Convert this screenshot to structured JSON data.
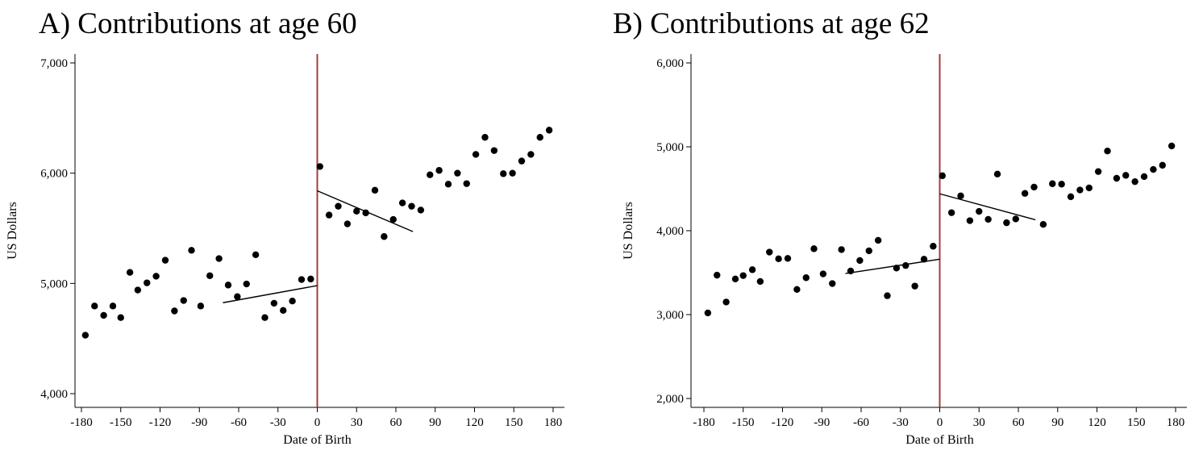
{
  "panels": [
    {
      "title": "A) Contributions at age 60"
    },
    {
      "title": "B) Contributions at age 62"
    }
  ],
  "colors": {
    "cutoff_line": "#a03c3c",
    "points": "#000000",
    "fit_line": "#000000",
    "axis": "#000000"
  },
  "chart_data": [
    {
      "type": "scatter",
      "title": "A) Contributions at age 60",
      "xlabel": "Date of Birth",
      "ylabel": "US Dollars",
      "xlim": [
        -180,
        180
      ],
      "ylim": [
        4000,
        7000
      ],
      "xticks": [
        -180,
        -150,
        -120,
        -90,
        -60,
        -30,
        0,
        30,
        60,
        90,
        120,
        150,
        180
      ],
      "xtick_labels": [
        "-180",
        "-150",
        "-120",
        "-90",
        "-60",
        "-30",
        "0",
        "30",
        "60",
        "90",
        "120",
        "150",
        "180"
      ],
      "yticks": [
        4000,
        5000,
        6000,
        7000
      ],
      "ytick_labels": [
        "4,000",
        "5,000",
        "6,000",
        "7,000"
      ],
      "grid": false,
      "cutoff_x": 0,
      "points": [
        {
          "x": -177,
          "y": 4530
        },
        {
          "x": -170,
          "y": 4795
        },
        {
          "x": -163,
          "y": 4710
        },
        {
          "x": -156,
          "y": 4795
        },
        {
          "x": -150,
          "y": 4690
        },
        {
          "x": -143,
          "y": 5100
        },
        {
          "x": -137,
          "y": 4940
        },
        {
          "x": -130,
          "y": 5005
        },
        {
          "x": -123,
          "y": 5065
        },
        {
          "x": -116,
          "y": 5210
        },
        {
          "x": -109,
          "y": 4750
        },
        {
          "x": -102,
          "y": 4845
        },
        {
          "x": -96,
          "y": 5300
        },
        {
          "x": -89,
          "y": 4795
        },
        {
          "x": -82,
          "y": 5070
        },
        {
          "x": -75,
          "y": 5225
        },
        {
          "x": -68,
          "y": 4985
        },
        {
          "x": -61,
          "y": 4880
        },
        {
          "x": -54,
          "y": 4995
        },
        {
          "x": -47,
          "y": 5260
        },
        {
          "x": -40,
          "y": 4690
        },
        {
          "x": -33,
          "y": 4820
        },
        {
          "x": -26,
          "y": 4755
        },
        {
          "x": -19,
          "y": 4840
        },
        {
          "x": -12,
          "y": 5035
        },
        {
          "x": -5,
          "y": 5040
        },
        {
          "x": 2,
          "y": 6060
        },
        {
          "x": 9,
          "y": 5620
        },
        {
          "x": 16,
          "y": 5700
        },
        {
          "x": 23,
          "y": 5540
        },
        {
          "x": 30,
          "y": 5655
        },
        {
          "x": 37,
          "y": 5640
        },
        {
          "x": 44,
          "y": 5845
        },
        {
          "x": 51,
          "y": 5425
        },
        {
          "x": 58,
          "y": 5580
        },
        {
          "x": 65,
          "y": 5730
        },
        {
          "x": 72,
          "y": 5700
        },
        {
          "x": 79,
          "y": 5665
        },
        {
          "x": 86,
          "y": 5985
        },
        {
          "x": 93,
          "y": 6025
        },
        {
          "x": 100,
          "y": 5900
        },
        {
          "x": 107,
          "y": 6000
        },
        {
          "x": 114,
          "y": 5905
        },
        {
          "x": 121,
          "y": 6170
        },
        {
          "x": 128,
          "y": 6325
        },
        {
          "x": 135,
          "y": 6205
        },
        {
          "x": 142,
          "y": 5995
        },
        {
          "x": 149,
          "y": 6000
        },
        {
          "x": 156,
          "y": 6110
        },
        {
          "x": 163,
          "y": 6170
        },
        {
          "x": 170,
          "y": 6325
        },
        {
          "x": 177,
          "y": 6390
        }
      ],
      "fit_lines": [
        {
          "x": [
            -72,
            0
          ],
          "y": [
            4825,
            4980
          ]
        },
        {
          "x": [
            0,
            73
          ],
          "y": [
            5840,
            5470
          ]
        }
      ]
    },
    {
      "type": "scatter",
      "title": "B) Contributions at age 62",
      "xlabel": "Date of Birth",
      "ylabel": "US Dollars",
      "xlim": [
        -180,
        180
      ],
      "ylim": [
        2000,
        6000
      ],
      "xticks": [
        -180,
        -150,
        -120,
        -90,
        -60,
        -30,
        0,
        30,
        60,
        90,
        120,
        150,
        180
      ],
      "xtick_labels": [
        "-180",
        "-150",
        "-120",
        "-90",
        "-60",
        "-30",
        "0",
        "30",
        "60",
        "90",
        "120",
        "150",
        "180"
      ],
      "yticks": [
        2000,
        3000,
        4000,
        5000,
        6000
      ],
      "ytick_labels": [
        "2,000",
        "3,000",
        "4,000",
        "5,000",
        "6,000"
      ],
      "grid": false,
      "cutoff_x": 0,
      "points": [
        {
          "x": -177,
          "y": 3020
        },
        {
          "x": -170,
          "y": 3470
        },
        {
          "x": -163,
          "y": 3150
        },
        {
          "x": -156,
          "y": 3425
        },
        {
          "x": -150,
          "y": 3465
        },
        {
          "x": -143,
          "y": 3535
        },
        {
          "x": -137,
          "y": 3395
        },
        {
          "x": -130,
          "y": 3745
        },
        {
          "x": -123,
          "y": 3665
        },
        {
          "x": -116,
          "y": 3670
        },
        {
          "x": -109,
          "y": 3300
        },
        {
          "x": -102,
          "y": 3440
        },
        {
          "x": -96,
          "y": 3785
        },
        {
          "x": -89,
          "y": 3485
        },
        {
          "x": -82,
          "y": 3370
        },
        {
          "x": -75,
          "y": 3775
        },
        {
          "x": -68,
          "y": 3520
        },
        {
          "x": -61,
          "y": 3645
        },
        {
          "x": -54,
          "y": 3760
        },
        {
          "x": -47,
          "y": 3885
        },
        {
          "x": -40,
          "y": 3225
        },
        {
          "x": -33,
          "y": 3555
        },
        {
          "x": -26,
          "y": 3585
        },
        {
          "x": -19,
          "y": 3340
        },
        {
          "x": -12,
          "y": 3660
        },
        {
          "x": -5,
          "y": 3815
        },
        {
          "x": 2,
          "y": 4655
        },
        {
          "x": 9,
          "y": 4215
        },
        {
          "x": 16,
          "y": 4415
        },
        {
          "x": 23,
          "y": 4120
        },
        {
          "x": 30,
          "y": 4230
        },
        {
          "x": 37,
          "y": 4135
        },
        {
          "x": 44,
          "y": 4675
        },
        {
          "x": 51,
          "y": 4095
        },
        {
          "x": 58,
          "y": 4140
        },
        {
          "x": 65,
          "y": 4445
        },
        {
          "x": 72,
          "y": 4520
        },
        {
          "x": 79,
          "y": 4075
        },
        {
          "x": 86,
          "y": 4560
        },
        {
          "x": 93,
          "y": 4555
        },
        {
          "x": 100,
          "y": 4405
        },
        {
          "x": 107,
          "y": 4485
        },
        {
          "x": 114,
          "y": 4510
        },
        {
          "x": 121,
          "y": 4705
        },
        {
          "x": 128,
          "y": 4950
        },
        {
          "x": 135,
          "y": 4625
        },
        {
          "x": 142,
          "y": 4660
        },
        {
          "x": 149,
          "y": 4585
        },
        {
          "x": 156,
          "y": 4645
        },
        {
          "x": 163,
          "y": 4730
        },
        {
          "x": 170,
          "y": 4780
        },
        {
          "x": 177,
          "y": 5010
        }
      ],
      "fit_lines": [
        {
          "x": [
            -72,
            0
          ],
          "y": [
            3490,
            3660
          ]
        },
        {
          "x": [
            0,
            73
          ],
          "y": [
            4440,
            4130
          ]
        }
      ]
    }
  ]
}
